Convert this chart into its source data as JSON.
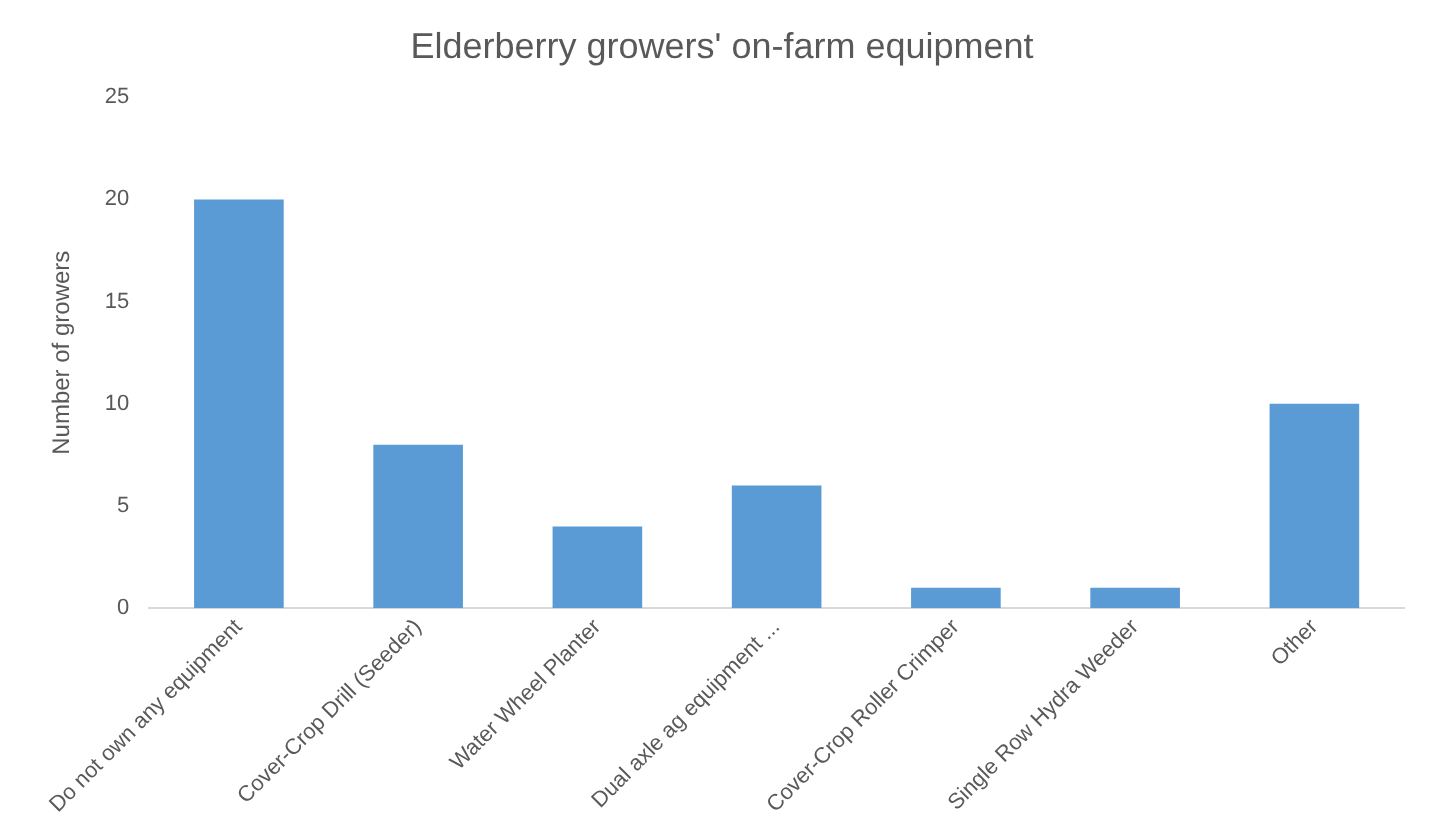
{
  "chart_data": {
    "type": "bar",
    "title": "Elderberry growers' on-farm equipment",
    "ylabel": "Number of growers",
    "categories": [
      "Do not own any equipment",
      "Cover-Crop Drill (Seeder)",
      "Water Wheel Planter",
      "Dual axle ag equipment ...",
      "Cover-Crop Roller Crimper",
      "Single Row Hydra Weeder",
      "Other"
    ],
    "values": [
      20,
      8,
      4,
      6,
      1,
      1,
      10
    ],
    "color": "#5b9bd5",
    "ylim": [
      0,
      25
    ],
    "yticks": [
      0,
      5,
      10,
      15,
      20,
      25
    ],
    "grid": false,
    "legend": false
  }
}
